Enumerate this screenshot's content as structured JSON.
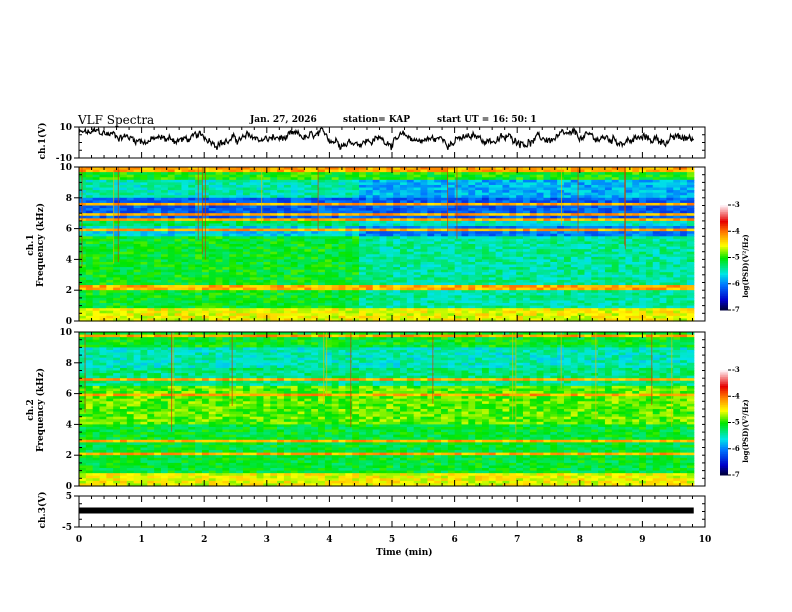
{
  "header": {
    "title": "VLF Spectra",
    "date": "Jan. 27, 2026",
    "station": "station= KAP",
    "start_ut": "start  UT =   16: 50: 1"
  },
  "chart_data": [
    {
      "type": "line",
      "name": "ch1-waveform",
      "ylabel": "ch.1(V)",
      "ylim": [
        -10,
        10
      ],
      "yticks": [
        "10",
        "-10"
      ],
      "xlim": [
        0,
        10
      ],
      "x_end": 9.82,
      "description_values": "noisy voltage trace ranging roughly between -10 and 10 V, mean near 2 V"
    },
    {
      "type": "heatmap",
      "name": "ch1-spectrogram",
      "ylabel_top": "ch.1",
      "ylabel": "Frequency  (kHz)",
      "ylim": [
        0,
        10
      ],
      "yticks": [
        "0",
        "2",
        "4",
        "6",
        "8",
        "10"
      ],
      "xlim": [
        0,
        10
      ],
      "colorbar": {
        "label": "log(PSD)(V²/Hz)",
        "range": [
          -7,
          -3
        ],
        "ticks": [
          "-3",
          "-4",
          "-5",
          "-6",
          "-7"
        ]
      }
    },
    {
      "type": "heatmap",
      "name": "ch2-spectrogram",
      "ylabel_top": "ch.2",
      "ylabel": "Frequency  (kHz)",
      "ylim": [
        0,
        10
      ],
      "yticks": [
        "0",
        "2",
        "4",
        "6",
        "8",
        "10"
      ],
      "xlim": [
        0,
        10
      ],
      "colorbar": {
        "label": "log(PSD)(V²/Hz)",
        "range": [
          -7,
          -3
        ],
        "ticks": [
          "-3",
          "-4",
          "-5",
          "-6",
          "-7"
        ]
      }
    },
    {
      "type": "line",
      "name": "ch3-waveform",
      "ylabel": "ch.3(V)",
      "ylim": [
        -5,
        5
      ],
      "yticks": [
        "5",
        "-5"
      ],
      "level": 0,
      "x_end": 9.82,
      "xlim": [
        0,
        10
      ],
      "xlabel": "Time  (min)",
      "xticks": [
        "0",
        "1",
        "2",
        "3",
        "4",
        "5",
        "6",
        "7",
        "8",
        "9",
        "10"
      ]
    }
  ],
  "colors": {
    "axis": "#000000",
    "background": "#ffffff"
  }
}
